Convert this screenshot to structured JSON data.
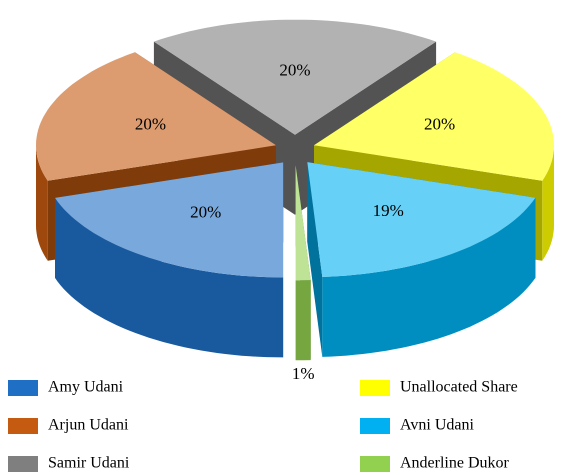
{
  "chart_data": {
    "type": "pie3d",
    "categories": [
      "Amy Udani",
      "Arjun Udani",
      "Samir Udani",
      "Unallocated Share",
      "Avni Udani",
      "Anderline Dukor"
    ],
    "values": [
      20,
      20,
      20,
      20,
      19,
      1
    ],
    "value_labels": [
      "20%",
      "20%",
      "20%",
      "20%",
      "19%",
      "1%"
    ],
    "colors": [
      "#1f6fc5",
      "#c55a11",
      "#7f7f7f",
      "#ffff00",
      "#00b0f0",
      "#92d050"
    ],
    "legend": "bottom"
  }
}
